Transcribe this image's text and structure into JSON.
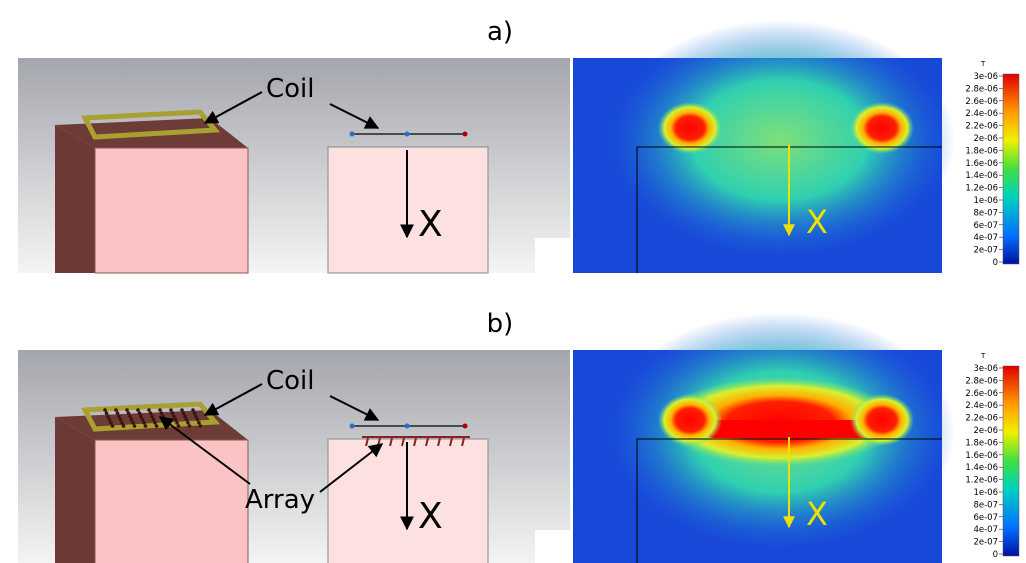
{
  "panels": [
    {
      "label": "a)",
      "coil_label": "Coil",
      "axis_label": "X",
      "colorbar_unit": "T",
      "colorbar_ticks": [
        "3e-06",
        "2.8e-06",
        "2.6e-06",
        "2.4e-06",
        "2.2e-06",
        "2e-06",
        "1.8e-06",
        "1.6e-06",
        "1.4e-06",
        "1.2e-06",
        "1e-06",
        "8e-07",
        "6e-07",
        "4e-07",
        "2e-07",
        "0"
      ]
    },
    {
      "label": "b)",
      "coil_label": "Coil",
      "array_label": "Array",
      "axis_label": "X",
      "colorbar_unit": "T",
      "colorbar_ticks": [
        "3e-06",
        "2.8e-06",
        "2.6e-06",
        "2.4e-06",
        "2.2e-06",
        "2e-06",
        "1.8e-06",
        "1.6e-06",
        "1.4e-06",
        "1.2e-06",
        "1e-06",
        "8e-07",
        "6e-07",
        "4e-07",
        "2e-07",
        "0"
      ]
    }
  ]
}
